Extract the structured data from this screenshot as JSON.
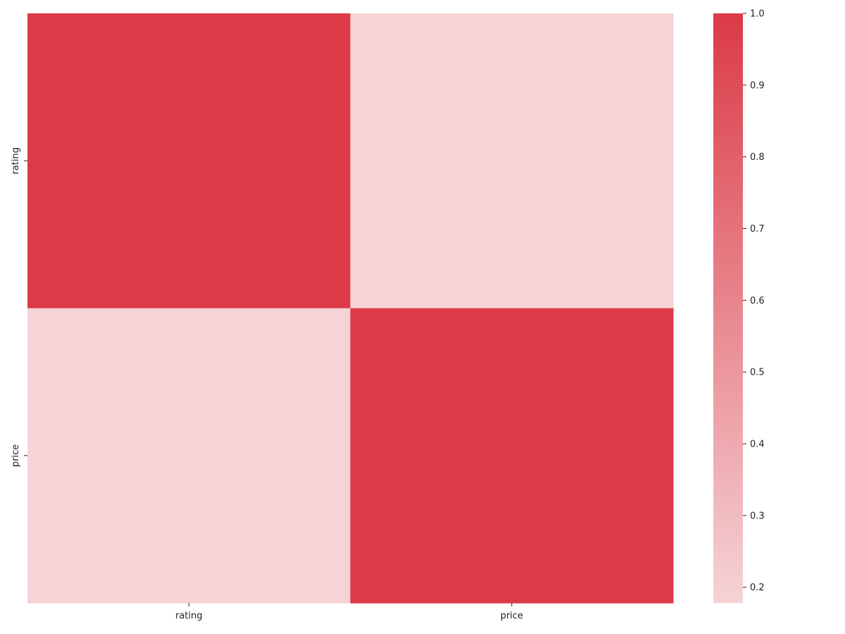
{
  "chart_data": {
    "type": "heatmap",
    "title": "",
    "xlabel": "",
    "ylabel": "",
    "x_categories": [
      "rating",
      "price"
    ],
    "y_categories": [
      "rating",
      "price"
    ],
    "values": [
      [
        1.0,
        0.178
      ],
      [
        0.178,
        1.0
      ]
    ],
    "colorbar": {
      "vmin": 0.178,
      "vmax": 1.0,
      "ticks": [
        "0.2",
        "0.3",
        "0.4",
        "0.5",
        "0.6",
        "0.7",
        "0.8",
        "0.9",
        "1.0"
      ],
      "color_low": "#f5d3d6",
      "color_high": "#db3a46"
    },
    "grid": false,
    "legend": "colorbar-right"
  }
}
